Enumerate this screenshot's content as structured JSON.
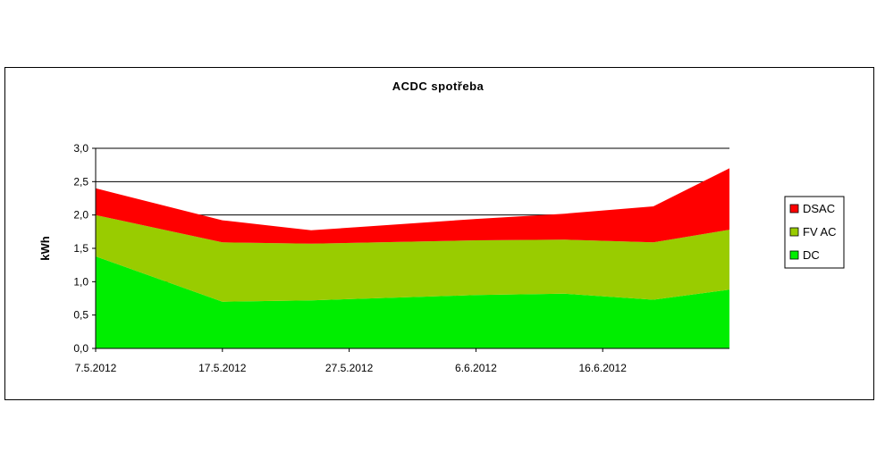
{
  "chart_data": {
    "type": "area",
    "stacked": true,
    "title": "ACDC spotřeba",
    "xlabel": "",
    "ylabel": "kWh",
    "ylim": [
      0,
      3.0
    ],
    "yticks": [
      "0,0",
      "0,5",
      "1,0",
      "1,5",
      "2,0",
      "2,5",
      "3,0"
    ],
    "xticks": [
      "7.5.2012",
      "17.5.2012",
      "27.5.2012",
      "6.6.2012",
      "16.6.2012"
    ],
    "x": [
      "2012-05-07",
      "2012-05-17",
      "2012-05-24",
      "2012-06-06",
      "2012-06-13",
      "2012-06-20",
      "2012-06-26"
    ],
    "grid": "horizontal major lines at 1.0, 2.0, 2.5, 3.0",
    "legend_position": "right",
    "series": [
      {
        "name": "DC",
        "color": "#00ee00",
        "values": [
          1.38,
          0.7,
          0.72,
          0.8,
          0.82,
          0.73,
          0.88
        ]
      },
      {
        "name": "FV AC",
        "color": "#99cc00",
        "values": [
          0.62,
          0.89,
          0.85,
          0.82,
          0.81,
          0.86,
          0.9
        ]
      },
      {
        "name": "DSAC",
        "color": "#ff0000",
        "values": [
          0.4,
          0.33,
          0.2,
          0.32,
          0.39,
          0.54,
          0.92
        ]
      }
    ]
  }
}
